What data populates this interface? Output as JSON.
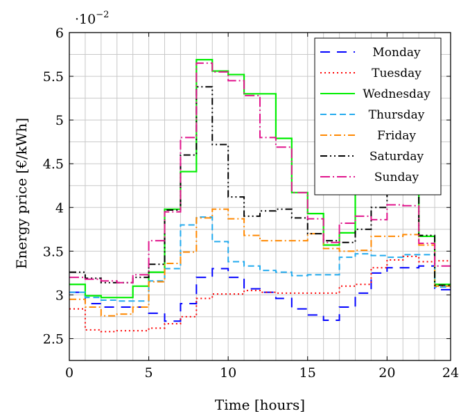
{
  "chart_data": {
    "type": "line",
    "step": true,
    "title": "",
    "xlabel": "Time [hours]",
    "ylabel": "Energy price [€/kWh]",
    "y_multiplier_label": "·10",
    "y_multiplier_exponent": "−2",
    "xlim": [
      0,
      24
    ],
    "ylim": [
      2.25,
      6
    ],
    "xticks": [
      0,
      5,
      10,
      15,
      20,
      24
    ],
    "xtick_labels": [
      "0",
      "5",
      "10",
      "15",
      "20",
      "24"
    ],
    "yticks": [
      2.5,
      3,
      3.5,
      4,
      4.5,
      5,
      5.5,
      6
    ],
    "ytick_labels": [
      "2.5",
      "3",
      "3.5",
      "4",
      "4.5",
      "5",
      "5.5",
      "6"
    ],
    "grid": true,
    "legend_position": "top-right",
    "x": [
      0,
      1,
      2,
      3,
      4,
      5,
      6,
      7,
      8,
      9,
      10,
      11,
      12,
      13,
      14,
      15,
      16,
      17,
      18,
      19,
      20,
      21,
      22,
      23,
      24
    ],
    "series": [
      {
        "name": "Monday",
        "color": "#0000ff",
        "dash": "14 10",
        "values": [
          3.03,
          2.9,
          2.86,
          2.86,
          2.86,
          2.79,
          2.7,
          2.9,
          3.2,
          3.3,
          3.2,
          3.07,
          3.03,
          2.96,
          2.84,
          2.77,
          2.71,
          2.86,
          3.02,
          3.25,
          3.31,
          3.31,
          3.33,
          3.06,
          3.06
        ]
      },
      {
        "name": "Tuesday",
        "color": "#ff0000",
        "dash": "2 4",
        "values": [
          2.84,
          2.6,
          2.58,
          2.59,
          2.59,
          2.62,
          2.67,
          2.75,
          2.96,
          3.01,
          3.01,
          3.05,
          3.03,
          3.02,
          3.02,
          3.02,
          3.02,
          3.1,
          3.12,
          3.31,
          3.4,
          3.44,
          3.38,
          3.39,
          3.39
        ]
      },
      {
        "name": "Wednesday",
        "color": "#00ee00",
        "dash": "",
        "values": [
          3.12,
          2.99,
          2.97,
          2.97,
          3.1,
          3.26,
          3.98,
          4.41,
          5.69,
          5.56,
          5.52,
          5.3,
          5.3,
          4.79,
          4.17,
          3.93,
          3.57,
          3.71,
          4.23,
          4.36,
          4.47,
          4.4,
          3.67,
          3.12,
          3.12
        ]
      },
      {
        "name": "Thursday",
        "color": "#22aaee",
        "dash": "9 5",
        "values": [
          3.03,
          2.97,
          2.94,
          2.93,
          2.93,
          3.16,
          3.3,
          3.8,
          3.89,
          3.61,
          3.38,
          3.33,
          3.28,
          3.26,
          3.22,
          3.23,
          3.23,
          3.43,
          3.47,
          3.45,
          3.43,
          3.46,
          3.46,
          3.09,
          3.09
        ]
      },
      {
        "name": "Friday",
        "color": "#ff8800",
        "dash": "10 4 2 4",
        "values": [
          2.95,
          2.86,
          2.76,
          2.78,
          2.86,
          3.15,
          3.36,
          3.49,
          3.88,
          3.98,
          3.87,
          3.68,
          3.62,
          3.62,
          3.62,
          3.7,
          3.53,
          3.5,
          3.51,
          3.67,
          3.67,
          3.69,
          3.57,
          3.1,
          3.1
        ]
      },
      {
        "name": "Saturday",
        "color": "#000000",
        "dash": "10 4 2 4 2 4",
        "values": [
          3.26,
          3.19,
          3.14,
          3.14,
          3.2,
          3.35,
          3.97,
          4.6,
          5.38,
          4.72,
          4.12,
          3.9,
          3.96,
          3.98,
          3.88,
          3.7,
          3.62,
          3.6,
          3.75,
          4.0,
          4.19,
          4.35,
          3.68,
          3.11,
          3.11
        ]
      },
      {
        "name": "Sunday",
        "color": "#e0148c",
        "dash": "14 4 2 4",
        "values": [
          3.2,
          3.18,
          3.16,
          3.14,
          3.23,
          3.62,
          3.95,
          4.8,
          5.65,
          5.55,
          5.45,
          5.28,
          4.8,
          4.69,
          4.17,
          3.87,
          3.6,
          3.82,
          3.9,
          3.86,
          4.03,
          4.02,
          3.59,
          3.33,
          3.33
        ]
      }
    ]
  }
}
